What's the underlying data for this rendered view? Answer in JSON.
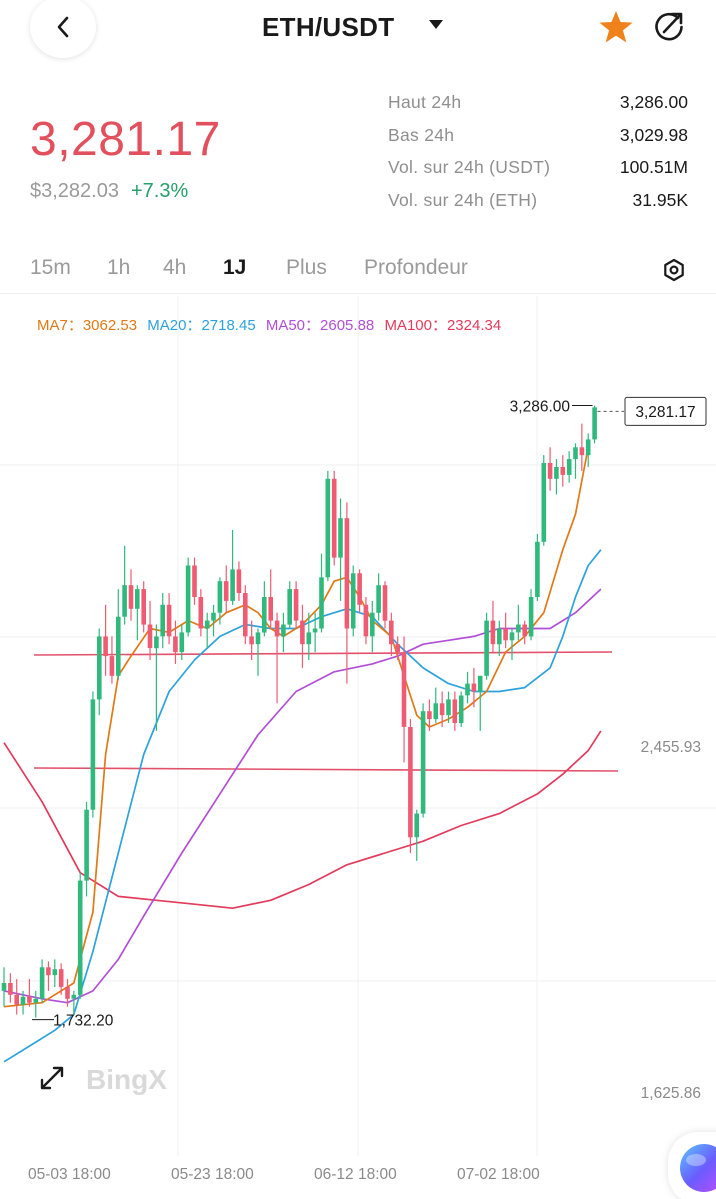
{
  "header": {
    "pair": "ETH/USDT",
    "icons": {
      "back": "back-arrow-icon",
      "dropdown": "caret-down-icon",
      "favorite": "star-icon",
      "share": "share-icon"
    },
    "favorite_color": "#f0821e"
  },
  "price": {
    "last": "3,281.17",
    "usd": "$3,282.03",
    "change": "+7.3%",
    "last_color": "#e2505d",
    "change_color": "#24a06b"
  },
  "stats": [
    {
      "label": "Haut 24h",
      "value": "3,286.00"
    },
    {
      "label": "Bas 24h",
      "value": "3,029.98"
    },
    {
      "label": "Vol. sur 24h (USDT)",
      "value": "100.51M"
    },
    {
      "label": "Vol. sur 24h (ETH)",
      "value": "31.95K"
    }
  ],
  "tabs": {
    "items": [
      "15m",
      "1h",
      "4h",
      "1J",
      "Plus",
      "Profondeur"
    ],
    "active": "1J"
  },
  "ma": [
    {
      "label": "MA7：",
      "value": "3062.53",
      "color": "#e07a18"
    },
    {
      "label": "MA20：",
      "value": "2718.45",
      "color": "#2da2dc"
    },
    {
      "label": "MA50：",
      "value": "2605.88",
      "color": "#b14fd6"
    },
    {
      "label": "MA100：",
      "value": "2324.34",
      "color": "#e23b5c"
    }
  ],
  "chart_data": {
    "type": "candlestick",
    "ylim": [
      1450,
      3410
    ],
    "y_ticks": [
      "2,455.93",
      "1,625.86"
    ],
    "x_ticks": [
      "05-03 18:00",
      "05-23 18:00",
      "06-12 18:00",
      "07-02 18:00"
    ],
    "high_label": "3,286.00",
    "low_label": "1,732.20",
    "last_price_label": "3,281.17",
    "watermark": "BingX",
    "up_color": "#2fb97c",
    "down_color": "#ef5b73",
    "candles": [
      {
        "o": 1800,
        "h": 1860,
        "l": 1760,
        "c": 1820
      },
      {
        "o": 1820,
        "h": 1845,
        "l": 1770,
        "c": 1790
      },
      {
        "o": 1790,
        "h": 1830,
        "l": 1740,
        "c": 1765
      },
      {
        "o": 1765,
        "h": 1800,
        "l": 1740,
        "c": 1785
      },
      {
        "o": 1785,
        "h": 1830,
        "l": 1760,
        "c": 1770
      },
      {
        "o": 1770,
        "h": 1800,
        "l": 1732,
        "c": 1780
      },
      {
        "o": 1780,
        "h": 1880,
        "l": 1770,
        "c": 1860
      },
      {
        "o": 1860,
        "h": 1875,
        "l": 1800,
        "c": 1840
      },
      {
        "o": 1840,
        "h": 1880,
        "l": 1810,
        "c": 1855
      },
      {
        "o": 1855,
        "h": 1870,
        "l": 1790,
        "c": 1810
      },
      {
        "o": 1810,
        "h": 1830,
        "l": 1760,
        "c": 1780
      },
      {
        "o": 1780,
        "h": 1800,
        "l": 1740,
        "c": 1790
      },
      {
        "o": 1790,
        "h": 2100,
        "l": 1780,
        "c": 2080
      },
      {
        "o": 2080,
        "h": 2280,
        "l": 2040,
        "c": 2260
      },
      {
        "o": 2260,
        "h": 2560,
        "l": 2240,
        "c": 2540
      },
      {
        "o": 2540,
        "h": 2720,
        "l": 2500,
        "c": 2700
      },
      {
        "o": 2700,
        "h": 2780,
        "l": 2600,
        "c": 2650
      },
      {
        "o": 2650,
        "h": 2700,
        "l": 2580,
        "c": 2600
      },
      {
        "o": 2600,
        "h": 2820,
        "l": 2590,
        "c": 2750
      },
      {
        "o": 2750,
        "h": 2930,
        "l": 2730,
        "c": 2830
      },
      {
        "o": 2830,
        "h": 2870,
        "l": 2740,
        "c": 2770
      },
      {
        "o": 2770,
        "h": 2830,
        "l": 2690,
        "c": 2820
      },
      {
        "o": 2820,
        "h": 2840,
        "l": 2710,
        "c": 2730
      },
      {
        "o": 2730,
        "h": 2790,
        "l": 2640,
        "c": 2670
      },
      {
        "o": 2670,
        "h": 2730,
        "l": 2460,
        "c": 2700
      },
      {
        "o": 2700,
        "h": 2810,
        "l": 2670,
        "c": 2780
      },
      {
        "o": 2780,
        "h": 2810,
        "l": 2680,
        "c": 2700
      },
      {
        "o": 2700,
        "h": 2740,
        "l": 2630,
        "c": 2660
      },
      {
        "o": 2660,
        "h": 2730,
        "l": 2640,
        "c": 2710
      },
      {
        "o": 2710,
        "h": 2900,
        "l": 2700,
        "c": 2880
      },
      {
        "o": 2880,
        "h": 2900,
        "l": 2780,
        "c": 2800
      },
      {
        "o": 2800,
        "h": 2820,
        "l": 2700,
        "c": 2720
      },
      {
        "o": 2720,
        "h": 2760,
        "l": 2670,
        "c": 2740
      },
      {
        "o": 2740,
        "h": 2780,
        "l": 2700,
        "c": 2760
      },
      {
        "o": 2760,
        "h": 2850,
        "l": 2730,
        "c": 2840
      },
      {
        "o": 2840,
        "h": 2880,
        "l": 2760,
        "c": 2790
      },
      {
        "o": 2790,
        "h": 2970,
        "l": 2780,
        "c": 2870
      },
      {
        "o": 2870,
        "h": 2890,
        "l": 2790,
        "c": 2810
      },
      {
        "o": 2810,
        "h": 2830,
        "l": 2680,
        "c": 2700
      },
      {
        "o": 2700,
        "h": 2740,
        "l": 2640,
        "c": 2680
      },
      {
        "o": 2680,
        "h": 2720,
        "l": 2600,
        "c": 2710
      },
      {
        "o": 2710,
        "h": 2840,
        "l": 2700,
        "c": 2800
      },
      {
        "o": 2800,
        "h": 2870,
        "l": 2720,
        "c": 2740
      },
      {
        "o": 2740,
        "h": 2760,
        "l": 2530,
        "c": 2700
      },
      {
        "o": 2700,
        "h": 2760,
        "l": 2660,
        "c": 2730
      },
      {
        "o": 2730,
        "h": 2840,
        "l": 2720,
        "c": 2820
      },
      {
        "o": 2820,
        "h": 2840,
        "l": 2720,
        "c": 2740
      },
      {
        "o": 2740,
        "h": 2780,
        "l": 2620,
        "c": 2680
      },
      {
        "o": 2680,
        "h": 2760,
        "l": 2640,
        "c": 2710
      },
      {
        "o": 2710,
        "h": 2760,
        "l": 2660,
        "c": 2720
      },
      {
        "o": 2720,
        "h": 2910,
        "l": 2710,
        "c": 2850
      },
      {
        "o": 2850,
        "h": 3120,
        "l": 2840,
        "c": 3100
      },
      {
        "o": 3100,
        "h": 3120,
        "l": 2880,
        "c": 2900
      },
      {
        "o": 2900,
        "h": 3050,
        "l": 2790,
        "c": 3000
      },
      {
        "o": 3000,
        "h": 3040,
        "l": 2580,
        "c": 2720
      },
      {
        "o": 2720,
        "h": 2880,
        "l": 2700,
        "c": 2860
      },
      {
        "o": 2860,
        "h": 2870,
        "l": 2760,
        "c": 2780
      },
      {
        "o": 2780,
        "h": 2800,
        "l": 2680,
        "c": 2700
      },
      {
        "o": 2700,
        "h": 2790,
        "l": 2660,
        "c": 2760
      },
      {
        "o": 2760,
        "h": 2860,
        "l": 2740,
        "c": 2830
      },
      {
        "o": 2830,
        "h": 2840,
        "l": 2720,
        "c": 2740
      },
      {
        "o": 2740,
        "h": 2760,
        "l": 2650,
        "c": 2680
      },
      {
        "o": 2680,
        "h": 2700,
        "l": 2640,
        "c": 2660
      },
      {
        "o": 2660,
        "h": 2700,
        "l": 2380,
        "c": 2470
      },
      {
        "o": 2470,
        "h": 2490,
        "l": 2150,
        "c": 2190
      },
      {
        "o": 2190,
        "h": 2260,
        "l": 2130,
        "c": 2250
      },
      {
        "o": 2250,
        "h": 2530,
        "l": 2240,
        "c": 2510
      },
      {
        "o": 2510,
        "h": 2540,
        "l": 2460,
        "c": 2490
      },
      {
        "o": 2490,
        "h": 2570,
        "l": 2480,
        "c": 2530
      },
      {
        "o": 2530,
        "h": 2560,
        "l": 2470,
        "c": 2500
      },
      {
        "o": 2500,
        "h": 2560,
        "l": 2480,
        "c": 2540
      },
      {
        "o": 2540,
        "h": 2560,
        "l": 2460,
        "c": 2480
      },
      {
        "o": 2480,
        "h": 2560,
        "l": 2470,
        "c": 2550
      },
      {
        "o": 2550,
        "h": 2610,
        "l": 2530,
        "c": 2580
      },
      {
        "o": 2580,
        "h": 2620,
        "l": 2520,
        "c": 2560
      },
      {
        "o": 2560,
        "h": 2600,
        "l": 2460,
        "c": 2600
      },
      {
        "o": 2600,
        "h": 2760,
        "l": 2590,
        "c": 2740
      },
      {
        "o": 2740,
        "h": 2790,
        "l": 2660,
        "c": 2680
      },
      {
        "o": 2680,
        "h": 2740,
        "l": 2650,
        "c": 2720
      },
      {
        "o": 2720,
        "h": 2760,
        "l": 2670,
        "c": 2690
      },
      {
        "o": 2690,
        "h": 2720,
        "l": 2640,
        "c": 2710
      },
      {
        "o": 2710,
        "h": 2780,
        "l": 2690,
        "c": 2730
      },
      {
        "o": 2730,
        "h": 2740,
        "l": 2680,
        "c": 2700
      },
      {
        "o": 2700,
        "h": 2820,
        "l": 2690,
        "c": 2800
      },
      {
        "o": 2800,
        "h": 2960,
        "l": 2790,
        "c": 2940
      },
      {
        "o": 2940,
        "h": 3160,
        "l": 2930,
        "c": 3140
      },
      {
        "o": 3140,
        "h": 3180,
        "l": 3070,
        "c": 3100
      },
      {
        "o": 3100,
        "h": 3150,
        "l": 3060,
        "c": 3130
      },
      {
        "o": 3130,
        "h": 3160,
        "l": 3080,
        "c": 3110
      },
      {
        "o": 3110,
        "h": 3170,
        "l": 3090,
        "c": 3150
      },
      {
        "o": 3150,
        "h": 3190,
        "l": 3100,
        "c": 3180
      },
      {
        "o": 3180,
        "h": 3240,
        "l": 3120,
        "c": 3160
      },
      {
        "o": 3160,
        "h": 3215,
        "l": 3130,
        "c": 3200
      },
      {
        "o": 3200,
        "h": 3286,
        "l": 3190,
        "c": 3281.17
      }
    ],
    "ma7": [
      [
        0,
        1760
      ],
      [
        6,
        1770
      ],
      [
        11,
        1820
      ],
      [
        14,
        2000
      ],
      [
        16,
        2400
      ],
      [
        18,
        2600
      ],
      [
        20,
        2650
      ],
      [
        23,
        2720
      ],
      [
        26,
        2710
      ],
      [
        29,
        2740
      ],
      [
        32,
        2720
      ],
      [
        35,
        2760
      ],
      [
        38,
        2780
      ],
      [
        40,
        2760
      ],
      [
        42,
        2720
      ],
      [
        44,
        2700
      ],
      [
        47,
        2730
      ],
      [
        50,
        2780
      ],
      [
        52,
        2840
      ],
      [
        54,
        2850
      ],
      [
        56,
        2800
      ],
      [
        58,
        2740
      ],
      [
        61,
        2700
      ],
      [
        63,
        2600
      ],
      [
        65,
        2500
      ],
      [
        67,
        2470
      ],
      [
        70,
        2490
      ],
      [
        73,
        2520
      ],
      [
        76,
        2560
      ],
      [
        79,
        2660
      ],
      [
        82,
        2700
      ],
      [
        85,
        2760
      ],
      [
        88,
        2920
      ],
      [
        90,
        3010
      ],
      [
        92,
        3180
      ]
    ],
    "ma20": [
      [
        0,
        1620
      ],
      [
        4,
        1660
      ],
      [
        8,
        1700
      ],
      [
        11,
        1740
      ],
      [
        14,
        1900
      ],
      [
        18,
        2150
      ],
      [
        22,
        2400
      ],
      [
        26,
        2560
      ],
      [
        30,
        2640
      ],
      [
        34,
        2700
      ],
      [
        38,
        2730
      ],
      [
        42,
        2720
      ],
      [
        46,
        2720
      ],
      [
        50,
        2750
      ],
      [
        54,
        2770
      ],
      [
        58,
        2750
      ],
      [
        62,
        2680
      ],
      [
        66,
        2620
      ],
      [
        70,
        2580
      ],
      [
        74,
        2560
      ],
      [
        78,
        2560
      ],
      [
        82,
        2570
      ],
      [
        86,
        2620
      ],
      [
        88,
        2700
      ],
      [
        90,
        2800
      ],
      [
        92,
        2880
      ],
      [
        94,
        2920
      ]
    ],
    "ma50": [
      [
        0,
        1800
      ],
      [
        6,
        1780
      ],
      [
        10,
        1770
      ],
      [
        14,
        1800
      ],
      [
        18,
        1880
      ],
      [
        22,
        1990
      ],
      [
        28,
        2150
      ],
      [
        34,
        2300
      ],
      [
        40,
        2450
      ],
      [
        46,
        2560
      ],
      [
        52,
        2610
      ],
      [
        58,
        2630
      ],
      [
        62,
        2650
      ],
      [
        66,
        2680
      ],
      [
        70,
        2690
      ],
      [
        74,
        2700
      ],
      [
        78,
        2720
      ],
      [
        82,
        2720
      ],
      [
        86,
        2720
      ],
      [
        90,
        2760
      ],
      [
        94,
        2820
      ]
    ],
    "ma100": [
      [
        0,
        2430
      ],
      [
        6,
        2280
      ],
      [
        12,
        2100
      ],
      [
        18,
        2040
      ],
      [
        24,
        2030
      ],
      [
        30,
        2020
      ],
      [
        36,
        2010
      ],
      [
        42,
        2030
      ],
      [
        48,
        2070
      ],
      [
        54,
        2120
      ],
      [
        60,
        2150
      ],
      [
        66,
        2180
      ],
      [
        72,
        2220
      ],
      [
        78,
        2250
      ],
      [
        84,
        2300
      ],
      [
        88,
        2350
      ],
      [
        92,
        2410
      ],
      [
        94,
        2460
      ]
    ],
    "hlines": [
      2865,
      2530
    ]
  },
  "fab": {
    "icon": "assistant-orb-icon"
  }
}
